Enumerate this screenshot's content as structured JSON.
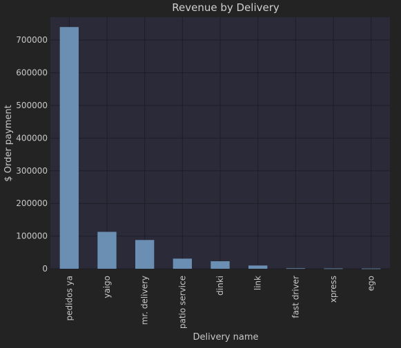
{
  "colors": {
    "page_background": "#232323",
    "plot_background": "#2a2a39",
    "grid": "#1e1e28",
    "bar": "#6b8fb2",
    "text": "#c8c8c8"
  },
  "chart_data": {
    "type": "bar",
    "title": "Revenue by Delivery",
    "xlabel": "Delivery name",
    "ylabel": "$ Order payment",
    "categories": [
      "pedidos ya",
      "yaigo",
      "mr. delivery",
      "patio service",
      "dinki",
      "link",
      "fast driver",
      "xpress",
      "ego"
    ],
    "values": [
      740000,
      113000,
      88000,
      31000,
      23000,
      10000,
      1500,
      1000,
      800
    ],
    "ylim": [
      0,
      770000
    ],
    "yticks": [
      0,
      100000,
      200000,
      300000,
      400000,
      500000,
      600000,
      700000
    ],
    "grid": true,
    "legend": "none"
  }
}
